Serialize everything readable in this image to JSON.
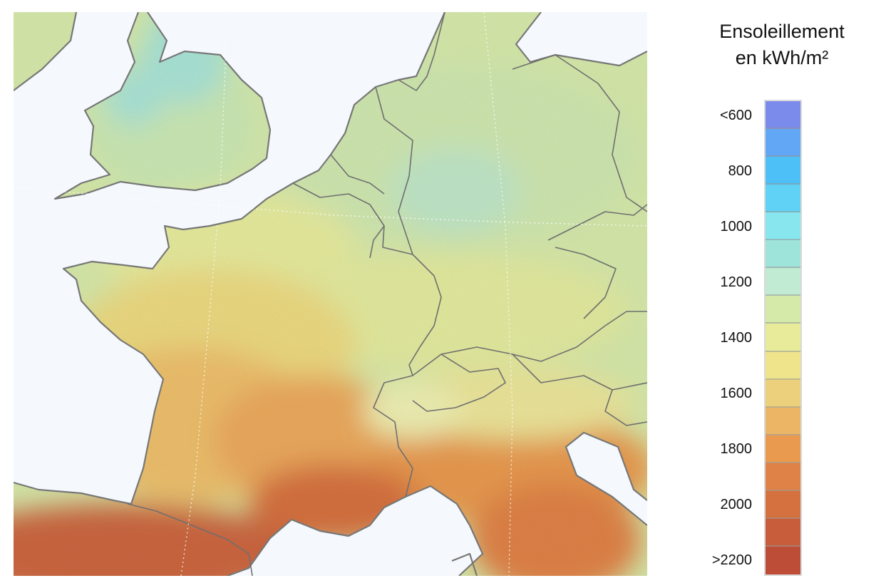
{
  "legend": {
    "title_line1": "Ensoleillement",
    "title_line2": "en kWh/m²",
    "classes": [
      {
        "color": "#7b8bec"
      },
      {
        "color": "#62a6f6"
      },
      {
        "color": "#4cc0f7"
      },
      {
        "color": "#5fd2f5"
      },
      {
        "color": "#88e6ef"
      },
      {
        "color": "#9fe4da"
      },
      {
        "color": "#c1ebd2"
      },
      {
        "color": "#d5eaa8"
      },
      {
        "color": "#e8ec9a"
      },
      {
        "color": "#efe48c"
      },
      {
        "color": "#edd07b"
      },
      {
        "color": "#ecb465"
      },
      {
        "color": "#ea9a4e"
      },
      {
        "color": "#df8247"
      },
      {
        "color": "#d5703f"
      },
      {
        "color": "#c85d3c"
      },
      {
        "color": "#be4d38"
      }
    ],
    "ticks": [
      {
        "label": "<600",
        "at": 0.5
      },
      {
        "label": "800",
        "at": 2.5
      },
      {
        "label": "1000",
        "at": 4.5
      },
      {
        "label": "1200",
        "at": 6.5
      },
      {
        "label": "1400",
        "at": 8.5
      },
      {
        "label": "1600",
        "at": 10.5
      },
      {
        "label": "1800",
        "at": 12.5
      },
      {
        "label": "2000",
        "at": 14.5
      },
      {
        "label": ">2200",
        "at": 16.5
      }
    ]
  },
  "map": {
    "sea_color": "#f5f9fd",
    "border_color": "#777777"
  }
}
